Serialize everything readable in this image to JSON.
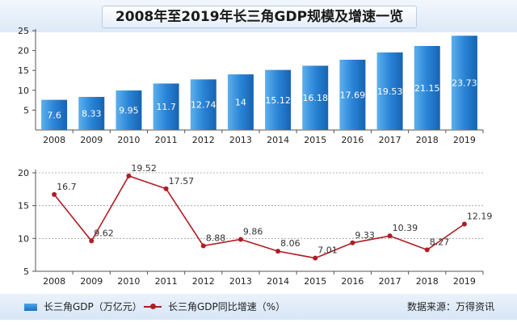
{
  "title": "2008年至2019年长三角GDP规模及增速一览",
  "source": "数据来源：万得资讯",
  "colors": {
    "bar": "#2a84d6",
    "line": "#b01c24"
  },
  "chart_data": [
    {
      "type": "bar",
      "title": "2008年至2019年长三角GDP规模及增速一览",
      "categories": [
        "2008",
        "2009",
        "2010",
        "2011",
        "2012",
        "2013",
        "2014",
        "2015",
        "2016",
        "2017",
        "2018",
        "2019"
      ],
      "series": [
        {
          "name": "长三角GDP（万亿元）",
          "values": [
            7.6,
            8.33,
            9.95,
            11.7,
            12.74,
            14,
            15.12,
            16.18,
            17.69,
            19.53,
            21.15,
            23.73
          ],
          "labels": [
            "7.6",
            "8.33",
            "9.95",
            "11.7",
            "12.74",
            "14",
            "15.12",
            "16.18",
            "17.69",
            "19.53",
            "21.15",
            "23.73"
          ]
        }
      ],
      "ylim": [
        0,
        25
      ],
      "yticks": [
        "5",
        "10",
        "15",
        "20",
        "25"
      ],
      "legend": "bottom-left"
    },
    {
      "type": "line",
      "categories": [
        "2008",
        "2009",
        "2010",
        "2011",
        "2012",
        "2013",
        "2014",
        "2015",
        "2016",
        "2017",
        "2018",
        "2019"
      ],
      "series": [
        {
          "name": "长三角GDP同比增速（%）",
          "values": [
            16.7,
            9.62,
            19.52,
            17.57,
            8.88,
            9.86,
            8.06,
            7.01,
            9.33,
            10.39,
            8.27,
            12.19
          ],
          "labels": [
            "16.7",
            "9.62",
            "19.52",
            "17.57",
            "8.88",
            "9.86",
            "8.06",
            "7.01",
            "9.33",
            "10.39",
            "8.27",
            "12.19"
          ]
        }
      ],
      "ylim": [
        5,
        20
      ],
      "yticks": [
        "5",
        "10",
        "15",
        "20"
      ],
      "grid": true,
      "legend": "bottom-center"
    }
  ]
}
